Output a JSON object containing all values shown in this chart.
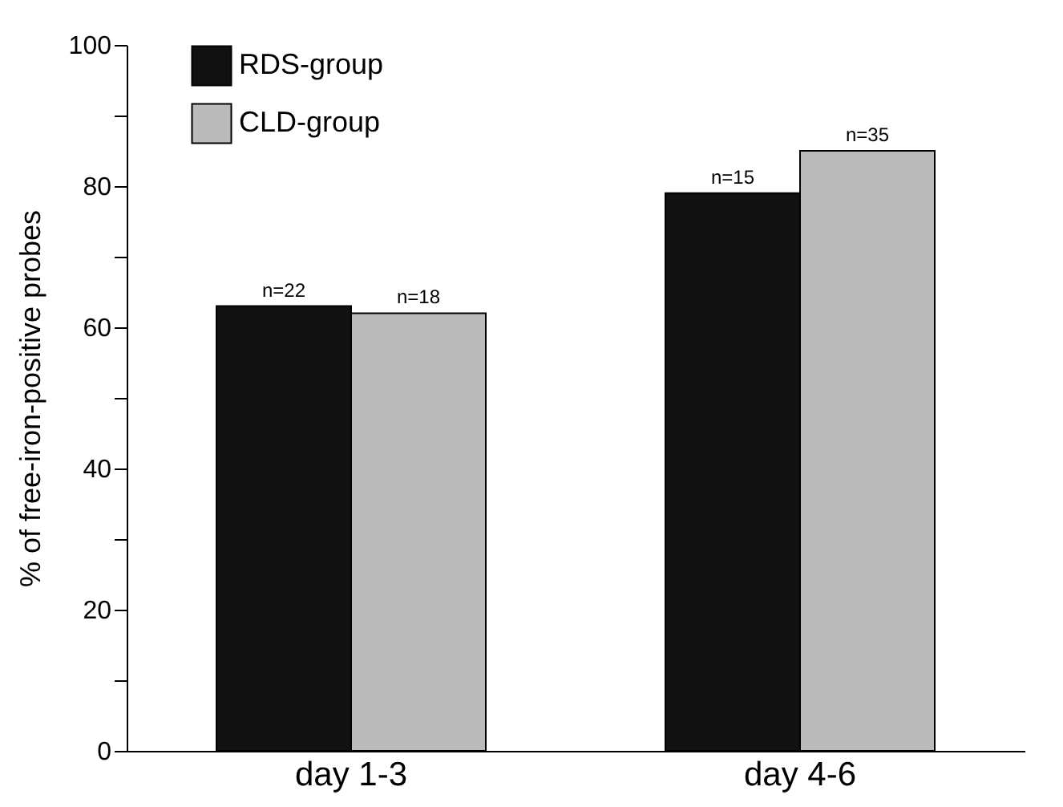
{
  "chart_data": {
    "type": "bar",
    "ylabel": "% of free-iron-positive probes",
    "categories": [
      "day 1-3",
      "day 4-6"
    ],
    "series": [
      {
        "name": "RDS-group",
        "color": "#111111",
        "values": [
          63,
          79
        ]
      },
      {
        "name": "CLD-group",
        "color": "#bbbbbb",
        "values": [
          62,
          85
        ]
      }
    ],
    "annotations": [
      {
        "text": "n=22",
        "x": "day 1-3",
        "y": 63
      },
      {
        "text": "n=18",
        "x": "day 1-3",
        "y": 62
      },
      {
        "text": "n=15",
        "x": "day 4-6",
        "y": 79
      },
      {
        "text": "n=35",
        "x": "day 4-6",
        "y": 85
      }
    ],
    "ylim": [
      0,
      100
    ],
    "yticks": [
      0,
      {
        "value": 10,
        "label": null
      },
      20,
      {
        "value": 30,
        "label": null
      },
      40,
      {
        "value": 50,
        "label": null
      },
      60,
      {
        "value": 70,
        "label": null
      },
      80,
      {
        "value": 90,
        "label": null
      },
      100
    ],
    "grid": false,
    "legend": "top left"
  }
}
